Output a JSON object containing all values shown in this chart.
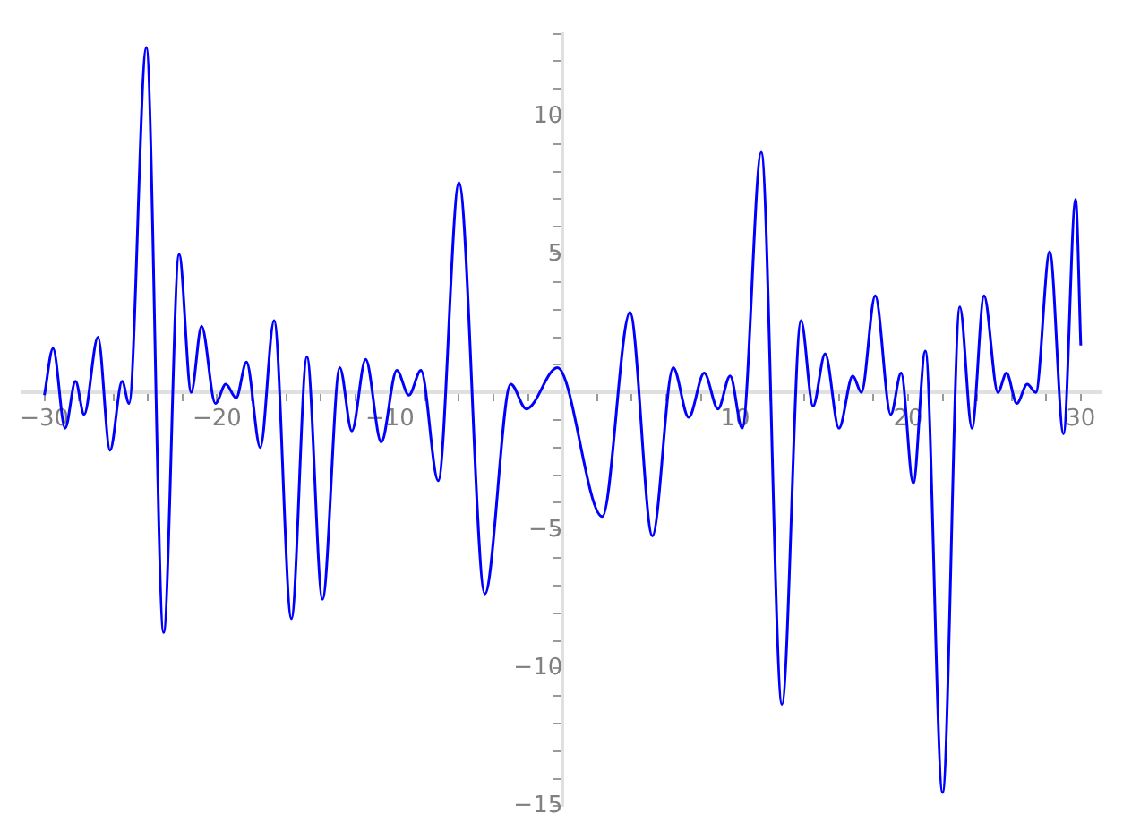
{
  "chart_data": {
    "type": "line",
    "marker": "none",
    "line_style": "solid",
    "xlim": [
      -31.2,
      31.2
    ],
    "ylim": [
      -15,
      13
    ],
    "xticks": [
      -30,
      {
        "value": -28,
        "label": null
      },
      {
        "value": -26,
        "label": null
      },
      {
        "value": -24,
        "label": null
      },
      {
        "value": -22,
        "label": null
      },
      -20,
      {
        "value": -18,
        "label": null
      },
      {
        "value": -16,
        "label": null
      },
      {
        "value": -14,
        "label": null
      },
      {
        "value": -12,
        "label": null
      },
      -10,
      {
        "value": -8,
        "label": null
      },
      {
        "value": -6,
        "label": null
      },
      {
        "value": -4,
        "label": null
      },
      {
        "value": -2,
        "label": null
      },
      {
        "value": 0,
        "label": null
      },
      {
        "value": 2,
        "label": null
      },
      {
        "value": 4,
        "label": null
      },
      {
        "value": 6,
        "label": null
      },
      {
        "value": 8,
        "label": null
      },
      10,
      {
        "value": 12,
        "label": null
      },
      {
        "value": 14,
        "label": null
      },
      {
        "value": 16,
        "label": null
      },
      {
        "value": 18,
        "label": null
      },
      20,
      {
        "value": 22,
        "label": null
      },
      {
        "value": 24,
        "label": null
      },
      {
        "value": 26,
        "label": null
      },
      {
        "value": 28,
        "label": null
      },
      30
    ],
    "yticks": [
      -15,
      {
        "value": -14,
        "label": null
      },
      {
        "value": -13,
        "label": null
      },
      {
        "value": -12,
        "label": null
      },
      {
        "value": -11,
        "label": null
      },
      -10,
      {
        "value": -9,
        "label": null
      },
      {
        "value": -8,
        "label": null
      },
      {
        "value": -7,
        "label": null
      },
      {
        "value": -6,
        "label": null
      },
      -5,
      {
        "value": -4,
        "label": null
      },
      {
        "value": -3,
        "label": null
      },
      {
        "value": -2,
        "label": null
      },
      {
        "value": -1,
        "label": null
      },
      {
        "value": 0,
        "label": null
      },
      {
        "value": 1,
        "label": null
      },
      {
        "value": 2,
        "label": null
      },
      {
        "value": 3,
        "label": null
      },
      {
        "value": 4,
        "label": null
      },
      5,
      {
        "value": 6,
        "label": null
      },
      {
        "value": 7,
        "label": null
      },
      {
        "value": 8,
        "label": null
      },
      {
        "value": 9,
        "label": null
      },
      10,
      {
        "value": 11,
        "label": null
      },
      {
        "value": 12,
        "label": null
      },
      {
        "value": 13,
        "label": null
      }
    ],
    "x": [
      -30,
      -29.5,
      -28.8,
      -28.2,
      -27.7,
      -26.9,
      -26.2,
      -25.5,
      -25.1,
      -24.1,
      -23.1,
      -22.2,
      -21.5,
      -20.9,
      -20.1,
      -19.5,
      -18.9,
      -18.3,
      -17.5,
      -16.7,
      -15.7,
      -14.8,
      -13.9,
      -12.9,
      -12.2,
      -11.4,
      -10.5,
      -9.6,
      -8.9,
      -8.2,
      -7.2,
      -6,
      -4.5,
      -3,
      -2.1,
      -0.3,
      2.3,
      3.9,
      5.2,
      6.4,
      7.3,
      8.2,
      9,
      9.7,
      10.4,
      11.5,
      12.7,
      13.8,
      14.5,
      15.2,
      16,
      16.8,
      17.3,
      18.1,
      19,
      19.6,
      20.3,
      21,
      22,
      23,
      23.7,
      24.4,
      25.2,
      25.7,
      26.3,
      26.9,
      27.4,
      28.2,
      29,
      29.7,
      30
    ],
    "series": [
      {
        "color": "#0000ff",
        "values": [
          -0.1,
          1.6,
          -1.3,
          0.4,
          -0.8,
          2,
          -2.1,
          0.4,
          -0.4,
          12.5,
          -8.7,
          5,
          0,
          2.4,
          -0.4,
          0.3,
          -0.2,
          1.1,
          -2,
          2.6,
          -8.2,
          1.3,
          -7.5,
          0.9,
          -1.4,
          1.2,
          -1.8,
          0.8,
          -0.1,
          0.8,
          -3.2,
          7.6,
          -7.3,
          0.3,
          -0.6,
          0.9,
          -4.5,
          2.9,
          -5.2,
          0.9,
          -0.9,
          0.7,
          -0.6,
          0.6,
          -1.3,
          8.7,
          -11.3,
          2.6,
          -0.5,
          1.4,
          -1.3,
          0.6,
          0,
          3.5,
          -0.8,
          0.7,
          -3.3,
          1.5,
          -14.5,
          3.1,
          -1.3,
          3.5,
          0,
          0.7,
          -0.4,
          0.3,
          0,
          5.1,
          -1.5,
          7,
          1.7
        ]
      }
    ]
  }
}
